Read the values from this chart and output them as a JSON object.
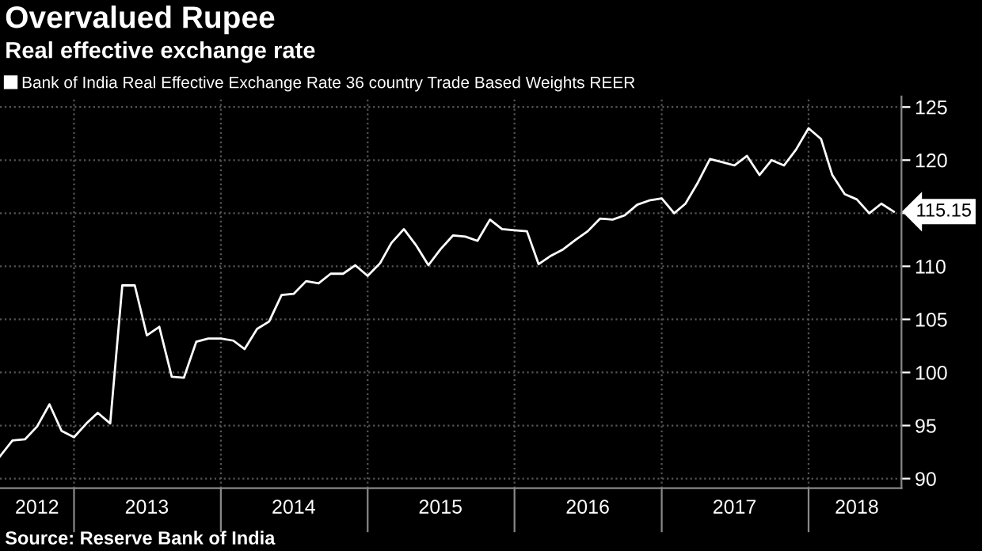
{
  "chart_data": {
    "type": "line",
    "title": "Overvalued Rupee",
    "subtitle": "Real effective exchange rate",
    "x": [
      "2012-07-01",
      "2012-08-01",
      "2012-09-01",
      "2012-10-01",
      "2012-11-01",
      "2012-12-01",
      "2013-01-01",
      "2013-02-01",
      "2013-03-01",
      "2013-04-01",
      "2013-05-01",
      "2013-06-01",
      "2013-07-01",
      "2013-08-01",
      "2013-09-01",
      "2013-10-01",
      "2013-11-01",
      "2013-12-01",
      "2014-01-01",
      "2014-02-01",
      "2014-03-01",
      "2014-04-01",
      "2014-05-01",
      "2014-06-01",
      "2014-07-01",
      "2014-08-01",
      "2014-09-01",
      "2014-10-01",
      "2014-11-01",
      "2014-12-01",
      "2015-01-01",
      "2015-02-01",
      "2015-03-01",
      "2015-04-01",
      "2015-05-01",
      "2015-06-01",
      "2015-07-01",
      "2015-08-01",
      "2015-09-01",
      "2015-10-01",
      "2015-11-01",
      "2015-12-01",
      "2016-01-01",
      "2016-02-01",
      "2016-03-01",
      "2016-04-01",
      "2016-05-01",
      "2016-06-01",
      "2016-07-01",
      "2016-08-01",
      "2016-09-01",
      "2016-10-01",
      "2016-11-01",
      "2016-12-01",
      "2017-01-01",
      "2017-02-01",
      "2017-03-01",
      "2017-04-01",
      "2017-05-01",
      "2017-06-01",
      "2017-07-01",
      "2017-08-01",
      "2017-09-01",
      "2017-10-01",
      "2017-11-01",
      "2017-12-01",
      "2018-01-01",
      "2018-02-01",
      "2018-03-01",
      "2018-04-01",
      "2018-05-01",
      "2018-06-01",
      "2018-07-01",
      "2018-08-01"
    ],
    "series": [
      {
        "name": "Bank of India Real Effective Exchange Rate 36 country Trade Based Weights REER",
        "color": "#ffffff",
        "values": [
          92.1,
          93.6,
          93.7,
          94.9,
          97.0,
          94.5,
          93.9,
          95.2,
          96.2,
          95.2,
          108.2,
          108.2,
          103.5,
          104.3,
          99.6,
          99.5,
          102.9,
          103.2,
          103.2,
          103.0,
          102.2,
          104.1,
          104.8,
          107.3,
          107.4,
          108.6,
          108.4,
          109.3,
          109.3,
          110.1,
          109.1,
          110.3,
          112.2,
          113.5,
          112.0,
          110.1,
          111.6,
          112.9,
          112.8,
          112.4,
          114.4,
          113.5,
          113.4,
          113.3,
          110.2,
          111.0,
          111.6,
          112.5,
          113.3,
          114.5,
          114.4,
          114.8,
          115.8,
          116.2,
          116.4,
          115.0,
          115.9,
          117.9,
          120.1,
          119.8,
          119.5,
          120.4,
          118.6,
          120.0,
          119.5,
          121.0,
          123.0,
          122.0,
          118.6,
          116.8,
          116.3,
          115.0,
          115.9,
          115.15
        ]
      }
    ],
    "xlim": [
      "2012-07-01",
      "2018-08-20"
    ],
    "xticks": [
      {
        "value": "2013-01-01",
        "label": null
      },
      {
        "value": "2014-01-01",
        "label": null
      },
      {
        "value": "2015-01-01",
        "label": null
      },
      {
        "value": "2016-01-01",
        "label": null
      },
      {
        "value": "2017-01-01",
        "label": null
      },
      {
        "value": "2018-01-01",
        "label": null
      },
      {
        "value": "2012-10-01",
        "label": "2012"
      },
      {
        "value": "2013-07-01",
        "label": "2013"
      },
      {
        "value": "2014-07-01",
        "label": "2014"
      },
      {
        "value": "2015-07-01",
        "label": "2015"
      },
      {
        "value": "2016-07-01",
        "label": "2016"
      },
      {
        "value": "2017-07-01",
        "label": "2017"
      },
      {
        "value": "2018-05-01",
        "label": "2018"
      }
    ],
    "ylim": [
      89.1,
      126
    ],
    "yticks": [
      90,
      95,
      100,
      105,
      110,
      {
        "value": 115,
        "label": null
      },
      120,
      125
    ],
    "grid": true,
    "legend": "top left",
    "marker": "none",
    "line_style": "solid",
    "annotations": [
      {
        "text": "115.15",
        "x": "2018-08-01",
        "y": 115.15
      },
      "Source: Reserve Bank of India"
    ]
  }
}
